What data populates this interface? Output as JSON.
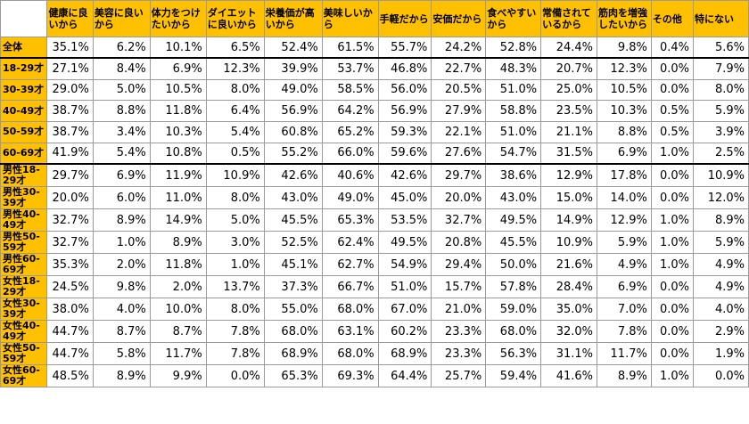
{
  "chart_data": {
    "type": "table",
    "columns": [
      "健康に良いから",
      "美容に良いから",
      "体力をつけたいから",
      "ダイエットに良いから",
      "栄養価が高いから",
      "美味しいから",
      "手軽だから",
      "安価だから",
      "食べやすいから",
      "常備されているから",
      "筋肉を増強したいから",
      "その他",
      "特にない"
    ],
    "rows": [
      {
        "label": "全体",
        "values": [
          "35.1%",
          "6.2%",
          "10.1%",
          "6.5%",
          "52.4%",
          "61.5%",
          "55.7%",
          "24.2%",
          "52.8%",
          "24.4%",
          "9.8%",
          "0.4%",
          "5.6%"
        ]
      },
      {
        "label": "18-29才",
        "values": [
          "27.1%",
          "8.4%",
          "6.9%",
          "12.3%",
          "39.9%",
          "53.7%",
          "46.8%",
          "22.7%",
          "48.3%",
          "20.7%",
          "12.3%",
          "0.0%",
          "7.9%"
        ]
      },
      {
        "label": "30-39才",
        "values": [
          "29.0%",
          "5.0%",
          "10.5%",
          "8.0%",
          "49.0%",
          "58.5%",
          "56.0%",
          "20.5%",
          "51.0%",
          "25.0%",
          "10.5%",
          "0.0%",
          "8.0%"
        ]
      },
      {
        "label": "40-49才",
        "values": [
          "38.7%",
          "8.8%",
          "11.8%",
          "6.4%",
          "56.9%",
          "64.2%",
          "56.9%",
          "27.9%",
          "58.8%",
          "23.5%",
          "10.3%",
          "0.5%",
          "5.9%"
        ]
      },
      {
        "label": "50-59才",
        "values": [
          "38.7%",
          "3.4%",
          "10.3%",
          "5.4%",
          "60.8%",
          "65.2%",
          "59.3%",
          "22.1%",
          "51.0%",
          "21.1%",
          "8.8%",
          "0.5%",
          "3.9%"
        ]
      },
      {
        "label": "60-69才",
        "values": [
          "41.9%",
          "5.4%",
          "10.8%",
          "0.5%",
          "55.2%",
          "66.0%",
          "59.6%",
          "27.6%",
          "54.7%",
          "31.5%",
          "6.9%",
          "1.0%",
          "2.5%"
        ]
      },
      {
        "label": "男性18-29才",
        "values": [
          "29.7%",
          "6.9%",
          "11.9%",
          "10.9%",
          "42.6%",
          "40.6%",
          "42.6%",
          "29.7%",
          "38.6%",
          "12.9%",
          "17.8%",
          "0.0%",
          "10.9%"
        ]
      },
      {
        "label": "男性30-39才",
        "values": [
          "20.0%",
          "6.0%",
          "11.0%",
          "8.0%",
          "43.0%",
          "49.0%",
          "45.0%",
          "20.0%",
          "43.0%",
          "15.0%",
          "14.0%",
          "0.0%",
          "12.0%"
        ]
      },
      {
        "label": "男性40-49才",
        "values": [
          "32.7%",
          "8.9%",
          "14.9%",
          "5.0%",
          "45.5%",
          "65.3%",
          "53.5%",
          "32.7%",
          "49.5%",
          "14.9%",
          "12.9%",
          "1.0%",
          "8.9%"
        ]
      },
      {
        "label": "男性50-59才",
        "values": [
          "32.7%",
          "1.0%",
          "8.9%",
          "3.0%",
          "52.5%",
          "62.4%",
          "49.5%",
          "20.8%",
          "45.5%",
          "10.9%",
          "5.9%",
          "1.0%",
          "5.9%"
        ]
      },
      {
        "label": "男性60-69才",
        "values": [
          "35.3%",
          "2.0%",
          "11.8%",
          "1.0%",
          "45.1%",
          "62.7%",
          "54.9%",
          "29.4%",
          "50.0%",
          "21.6%",
          "4.9%",
          "1.0%",
          "4.9%"
        ]
      },
      {
        "label": "女性18-29才",
        "values": [
          "24.5%",
          "9.8%",
          "2.0%",
          "13.7%",
          "37.3%",
          "66.7%",
          "51.0%",
          "15.7%",
          "57.8%",
          "28.4%",
          "6.9%",
          "0.0%",
          "4.9%"
        ]
      },
      {
        "label": "女性30-39才",
        "values": [
          "38.0%",
          "4.0%",
          "10.0%",
          "8.0%",
          "55.0%",
          "68.0%",
          "67.0%",
          "21.0%",
          "59.0%",
          "35.0%",
          "7.0%",
          "0.0%",
          "4.0%"
        ]
      },
      {
        "label": "女性40-49才",
        "values": [
          "44.7%",
          "8.7%",
          "8.7%",
          "7.8%",
          "68.0%",
          "63.1%",
          "60.2%",
          "23.3%",
          "68.0%",
          "32.0%",
          "7.8%",
          "0.0%",
          "2.9%"
        ]
      },
      {
        "label": "女性50-59才",
        "values": [
          "44.7%",
          "5.8%",
          "11.7%",
          "7.8%",
          "68.9%",
          "68.0%",
          "68.9%",
          "23.3%",
          "56.3%",
          "31.1%",
          "11.7%",
          "0.0%",
          "1.9%"
        ]
      },
      {
        "label": "女性60-69才",
        "values": [
          "48.5%",
          "8.9%",
          "9.9%",
          "0.0%",
          "65.3%",
          "69.3%",
          "64.4%",
          "25.7%",
          "59.4%",
          "41.6%",
          "8.9%",
          "1.0%",
          "0.0%"
        ]
      }
    ],
    "header_color": "#ffc000",
    "separator_after_rows": [
      0,
      5
    ]
  }
}
